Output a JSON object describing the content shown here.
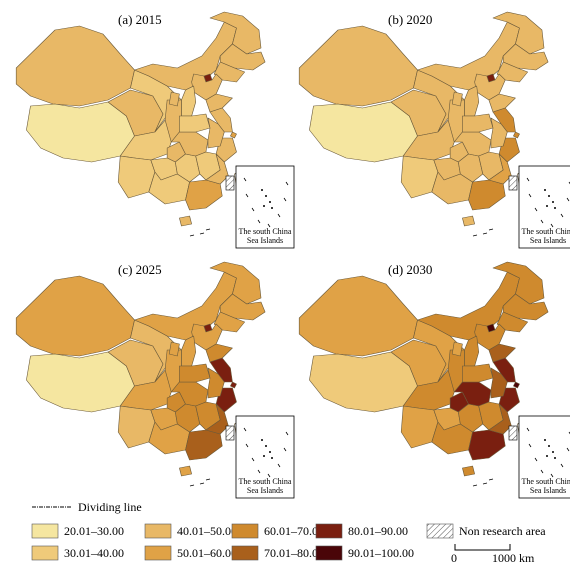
{
  "panels": [
    {
      "label": "(a) 2015"
    },
    {
      "label": "(b) 2020"
    },
    {
      "label": "(c) 2025"
    },
    {
      "label": "(d) 2030"
    }
  ],
  "inset_label": [
    "The south China",
    "Sea Islands"
  ],
  "legend": {
    "dividing_line": "Dividing line",
    "classes": [
      {
        "label": "20.01–30.00",
        "color": "#f5e6a0"
      },
      {
        "label": "30.01–40.00",
        "color": "#efca7a"
      },
      {
        "label": "40.01–50.00",
        "color": "#e8b866"
      },
      {
        "label": "50.01–60.00",
        "color": "#e0a246"
      },
      {
        "label": "60.01–70.00",
        "color": "#cf8a2e"
      },
      {
        "label": "70.01–80.00",
        "color": "#a9601c"
      },
      {
        "label": "80.01–90.00",
        "color": "#7a1f10"
      },
      {
        "label": "90.01–100.00",
        "color": "#4a0508"
      }
    ],
    "non_research": "Non research area",
    "scale": {
      "start": "0",
      "end": "1000 km"
    }
  },
  "map_data": {
    "regions": [
      "xinjiang",
      "tibet",
      "qinghai",
      "gansu",
      "inner_mongolia",
      "heilongjiang",
      "jilin",
      "liaoning",
      "beijing",
      "hebei",
      "shanxi",
      "shaanxi",
      "ningxia",
      "sichuan",
      "chongqing",
      "yunnan",
      "guizhou",
      "guangxi",
      "guangdong",
      "hainan",
      "hunan",
      "hubei",
      "henan",
      "shandong",
      "jiangsu",
      "shanghai",
      "zhejiang",
      "anhui",
      "jiangxi",
      "fujian",
      "taiwan"
    ],
    "values": [
      [
        45,
        25,
        42,
        38,
        45,
        47,
        45,
        43,
        82,
        42,
        38,
        42,
        42,
        40,
        45,
        35,
        35,
        38,
        55,
        45,
        40,
        42,
        40,
        44,
        50,
        56,
        48,
        42,
        40,
        47,
        null
      ],
      [
        46,
        25,
        44,
        42,
        48,
        50,
        48,
        45,
        85,
        46,
        45,
        46,
        44,
        45,
        48,
        40,
        42,
        44,
        65,
        50,
        48,
        48,
        46,
        50,
        62,
        68,
        62,
        48,
        48,
        58,
        null
      ],
      [
        52,
        28,
        50,
        50,
        55,
        58,
        55,
        58,
        88,
        60,
        55,
        55,
        52,
        58,
        62,
        48,
        52,
        55,
        75,
        60,
        62,
        66,
        62,
        66,
        82,
        88,
        82,
        66,
        62,
        72,
        null
      ],
      [
        55,
        35,
        52,
        55,
        65,
        65,
        68,
        70,
        92,
        66,
        62,
        62,
        58,
        66,
        82,
        52,
        58,
        62,
        85,
        66,
        68,
        82,
        68,
        75,
        88,
        92,
        88,
        72,
        68,
        80,
        null
      ]
    ]
  }
}
